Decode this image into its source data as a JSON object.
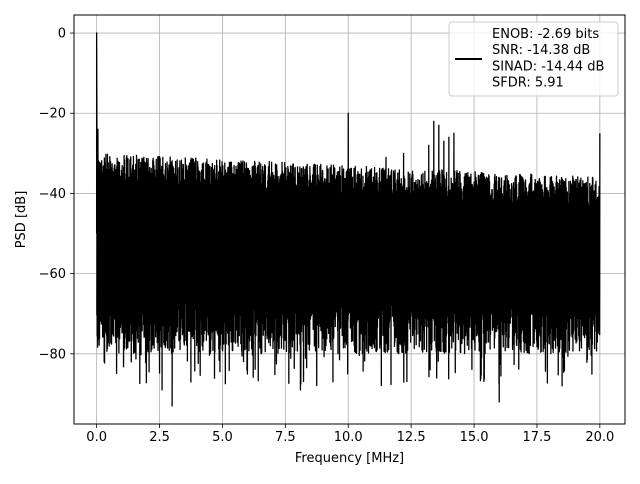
{
  "chart_data": {
    "type": "line",
    "title": "",
    "xlabel": "Frequency [MHz]",
    "ylabel": "PSD [dB]",
    "xlim": [
      -0.9,
      21.0
    ],
    "ylim": [
      -97.5,
      4.5
    ],
    "x_ticks": [
      0.0,
      2.5,
      5.0,
      7.5,
      10.0,
      12.5,
      15.0,
      17.5,
      20.0
    ],
    "x_tick_labels": [
      "0.0",
      "2.5",
      "5.0",
      "7.5",
      "10.0",
      "12.5",
      "15.0",
      "17.5",
      "20.0"
    ],
    "y_ticks": [
      0,
      -20,
      -40,
      -60,
      -80
    ],
    "y_tick_labels": [
      "0",
      "−20",
      "−40",
      "−60",
      "−80"
    ],
    "grid": true,
    "legend_position": "top-right",
    "series": [
      {
        "name": "ENOB: -2.69 bits\nSNR: -14.38 dB\nSINAD: -14.44 dB\nSFDR: 5.91",
        "color": "#000000",
        "x_range": [
          0.0,
          20.0
        ],
        "fundamental": {
          "x": 0.0,
          "y": 0
        },
        "noise_floor_top_start": -30,
        "noise_floor_top_end": -36,
        "noise_floor_bottom": -80,
        "min_dips": [
          {
            "x": 3.0,
            "y": -93
          },
          {
            "x": 16.0,
            "y": -92
          },
          {
            "x": 8.1,
            "y": -89
          },
          {
            "x": 2.6,
            "y": -89
          },
          {
            "x": 18.5,
            "y": -88
          }
        ],
        "spurs": [
          {
            "x": 0.05,
            "y": -24
          },
          {
            "x": 10.0,
            "y": -20
          },
          {
            "x": 11.5,
            "y": -31
          },
          {
            "x": 12.2,
            "y": -30
          },
          {
            "x": 13.2,
            "y": -28
          },
          {
            "x": 13.4,
            "y": -22
          },
          {
            "x": 13.6,
            "y": -23
          },
          {
            "x": 13.8,
            "y": -27
          },
          {
            "x": 14.0,
            "y": -26
          },
          {
            "x": 14.2,
            "y": -25
          },
          {
            "x": 20.0,
            "y": -25
          }
        ]
      }
    ]
  }
}
